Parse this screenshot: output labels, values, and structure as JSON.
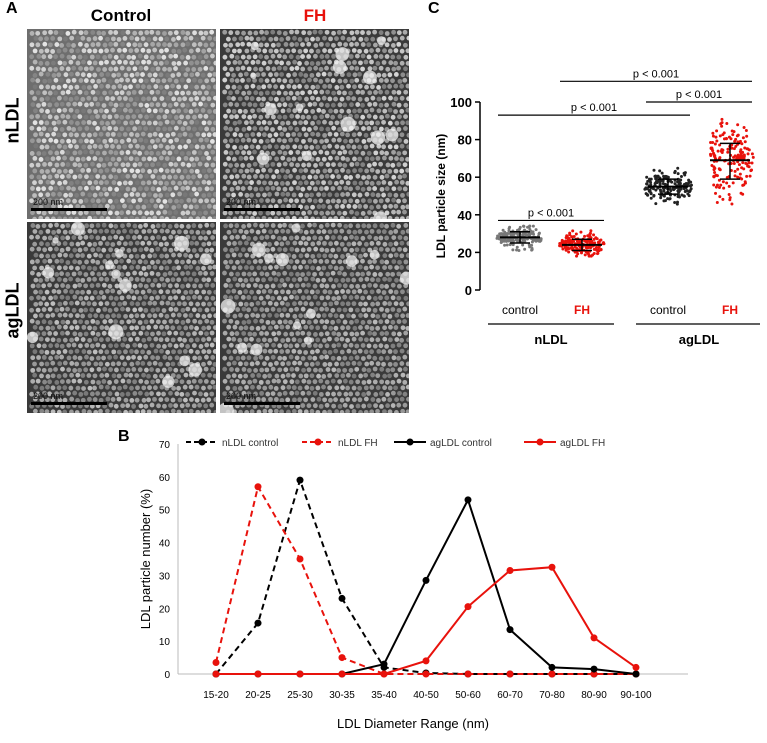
{
  "panel_a": {
    "letter": "A",
    "columns": [
      "Control",
      "FH"
    ],
    "rows": [
      "nLDL",
      "agLDL"
    ],
    "scale_label": "200 nm",
    "column_colors": [
      "#000000",
      "#e8120c"
    ]
  },
  "chart_data": [
    {
      "panel": "C",
      "type": "scatter",
      "ylabel": "LDL particle size (nm)",
      "ylim": [
        0,
        100
      ],
      "yticks": [
        0,
        20,
        40,
        60,
        80,
        100
      ],
      "groups": [
        {
          "label": "control",
          "parent": "nLDL",
          "color": "#777777",
          "label_color": "#000000",
          "mean": 28,
          "sd_low": 25,
          "sd_high": 31,
          "min": 20,
          "max": 34
        },
        {
          "label": "FH",
          "parent": "nLDL",
          "color": "#e8120c",
          "label_color": "#e8120c",
          "mean": 24,
          "sd_low": 21,
          "sd_high": 27,
          "min": 18,
          "max": 32
        },
        {
          "label": "control",
          "parent": "agLDL",
          "color": "#222222",
          "label_color": "#000000",
          "mean": 55,
          "sd_low": 51,
          "sd_high": 59,
          "min": 40,
          "max": 90
        },
        {
          "label": "FH",
          "parent": "agLDL",
          "color": "#e8120c",
          "label_color": "#e8120c",
          "mean": 69,
          "sd_low": 59,
          "sd_high": 78,
          "min": 45,
          "max": 97
        }
      ],
      "group_labels": [
        "nLDL",
        "agLDL"
      ],
      "significance": [
        {
          "text": "p < 0.001",
          "from": 0,
          "to": 1,
          "y": 37
        },
        {
          "text": "p < 0.001",
          "from": 0,
          "to": 2,
          "y": 93
        },
        {
          "text": "p < 0.001",
          "from": 2,
          "to": 3,
          "y": 100
        },
        {
          "text": "p < 0.001",
          "from": 1,
          "to": 3,
          "y": 111
        }
      ]
    },
    {
      "panel": "B",
      "type": "line",
      "xlabel": "LDL Diameter Range (nm)",
      "ylabel": "LDL particle number (%)",
      "ylim": [
        0,
        70
      ],
      "yticks": [
        0,
        10,
        20,
        30,
        40,
        50,
        60,
        70
      ],
      "legend_position": "top",
      "categories": [
        "15-20",
        "20-25",
        "25-30",
        "30-35",
        "35-40",
        "40-50",
        "50-60",
        "60-70",
        "70-80",
        "80-90",
        "90-100"
      ],
      "series": [
        {
          "name": "nLDL control",
          "color": "#000000",
          "dashed": true,
          "values": [
            0,
            15.5,
            59,
            23,
            2,
            0.3,
            0,
            0,
            0,
            0,
            0
          ]
        },
        {
          "name": "nLDL FH",
          "color": "#e8120c",
          "dashed": true,
          "values": [
            3.5,
            57,
            35,
            5,
            0,
            0,
            0,
            0,
            0,
            0,
            0
          ]
        },
        {
          "name": "agLDL control",
          "color": "#000000",
          "dashed": false,
          "values": [
            0,
            0,
            0,
            0,
            3,
            28.5,
            53,
            13.5,
            2,
            1.5,
            0
          ]
        },
        {
          "name": "agLDL FH",
          "color": "#e8120c",
          "dashed": false,
          "values": [
            0,
            0,
            0,
            0,
            0,
            4,
            20.5,
            31.5,
            32.5,
            11,
            2
          ]
        }
      ]
    }
  ]
}
